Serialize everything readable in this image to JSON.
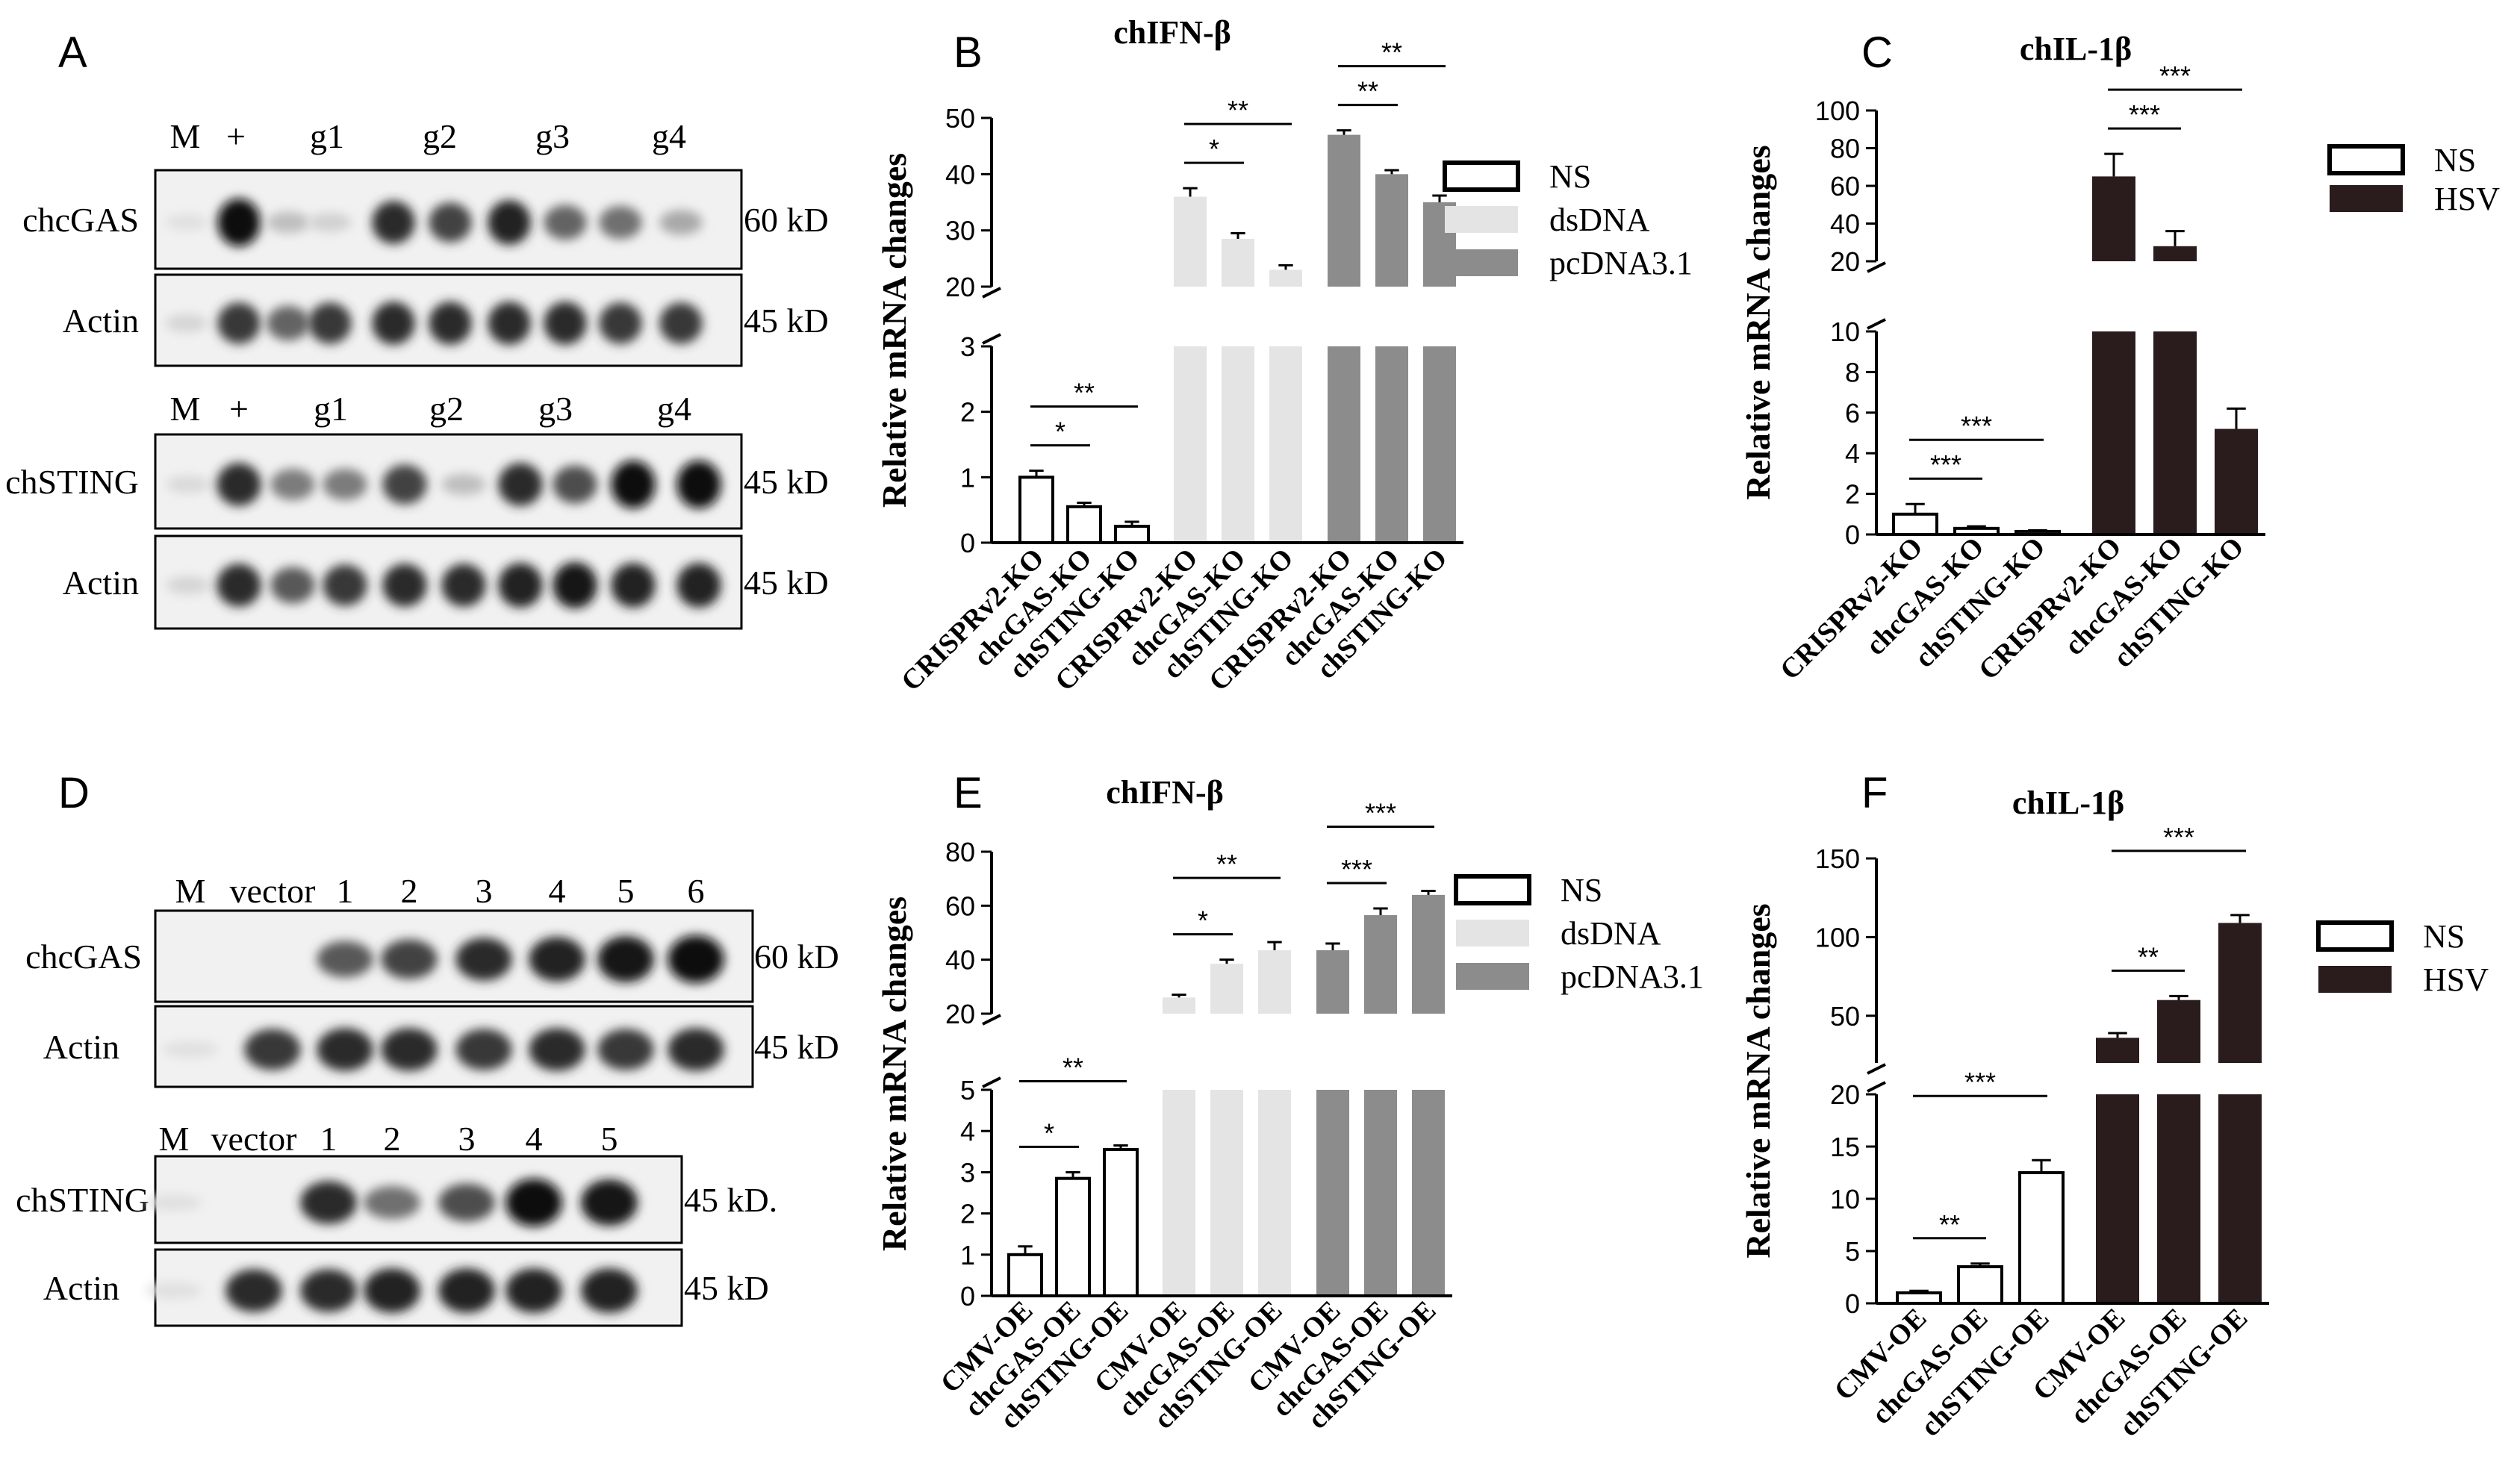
{
  "panel_letters": [
    "A",
    "B",
    "C",
    "D",
    "E",
    "F"
  ],
  "blots": [
    {
      "id": "A1",
      "lane_labels": [
        "M",
        "+",
        "g1",
        "g2",
        "g3",
        "g4"
      ],
      "rows": [
        {
          "name": "chcGAS",
          "size": "60 kD",
          "intensity": [
            0.05,
            1.0,
            0.2,
            0.12,
            0.85,
            0.75,
            0.9,
            0.6,
            0.55,
            0.3
          ]
        },
        {
          "name": "Actin",
          "size": "45 kD",
          "intensity": [
            0.1,
            0.8,
            0.6,
            0.8,
            0.85,
            0.85,
            0.85,
            0.85,
            0.8,
            0.8
          ]
        }
      ]
    },
    {
      "id": "A2",
      "lane_labels": [
        "M",
        "+",
        "g1",
        "g2",
        "g3",
        "g4"
      ],
      "rows": [
        {
          "name": "chSTING",
          "size": "45 kD",
          "intensity": [
            0.08,
            0.85,
            0.5,
            0.5,
            0.75,
            0.2,
            0.85,
            0.7,
            1.0,
            1.0
          ]
        },
        {
          "name": "Actin",
          "size": "45 kD",
          "intensity": [
            0.1,
            0.85,
            0.65,
            0.8,
            0.85,
            0.85,
            0.9,
            0.95,
            0.9,
            0.9
          ]
        }
      ]
    },
    {
      "id": "D1",
      "lane_labels": [
        "M",
        "vector",
        "1",
        "2",
        "3",
        "4",
        "5",
        "6"
      ],
      "rows": [
        {
          "name": "chcGAS",
          "size": "60 kD",
          "intensity": [
            0.0,
            0.0,
            0.65,
            0.75,
            0.85,
            0.9,
            0.95,
            1.0
          ]
        },
        {
          "name": "Actin",
          "size": "45 kD",
          "intensity": [
            0.05,
            0.8,
            0.85,
            0.85,
            0.8,
            0.85,
            0.8,
            0.85
          ]
        }
      ]
    },
    {
      "id": "D2",
      "lane_labels": [
        "M",
        "vector",
        "1",
        "2",
        "3",
        "4",
        "5"
      ],
      "rows": [
        {
          "name": "chSTING",
          "size": "45 kD.",
          "intensity": [
            0.05,
            0.0,
            0.85,
            0.55,
            0.7,
            1.0,
            0.95
          ]
        },
        {
          "name": "Actin",
          "size": "45 kD",
          "intensity": [
            0.05,
            0.85,
            0.85,
            0.9,
            0.9,
            0.9,
            0.9
          ]
        }
      ]
    }
  ],
  "legends": {
    "three": [
      "NS",
      "dsDNA",
      "pcDNA3.1"
    ],
    "two": [
      "NS",
      "HSV"
    ]
  },
  "colors": {
    "NS": "#ffffff",
    "dsDNA": "#e4e4e4",
    "pcDNA3.1": "#8c8c8c",
    "HSV": "#2a1c1c",
    "axis": "#000000"
  },
  "chart_data": [
    {
      "panel": "B",
      "type": "bar",
      "title": "chIFN-β",
      "ylabel": "Relative mRNA changes",
      "categories": [
        "CRISPRv2-KO",
        "chcGAS-KO",
        "chSTING-KO",
        "CRISPRv2-KO",
        "chcGAS-KO",
        "chSTING-KO",
        "CRISPRv2-KO",
        "chcGAS-KO",
        "chSTING-KO"
      ],
      "groups": [
        "NS",
        "NS",
        "NS",
        "dsDNA",
        "dsDNA",
        "dsDNA",
        "pcDNA3.1",
        "pcDNA3.1",
        "pcDNA3.1"
      ],
      "values": [
        1.0,
        0.55,
        0.25,
        36,
        28.5,
        23,
        47,
        40,
        35
      ],
      "errors": [
        0.1,
        0.06,
        0.07,
        1.5,
        1.0,
        0.8,
        0.8,
        0.7,
        1.2
      ],
      "y_break": {
        "lower": [
          0,
          3
        ],
        "upper": [
          20,
          50
        ]
      },
      "lower_ticks": [
        0,
        1,
        2,
        3
      ],
      "upper_ticks": [
        20,
        30,
        40,
        50
      ],
      "legend": [
        "NS",
        "dsDNA",
        "pcDNA3.1"
      ],
      "significance": [
        {
          "from": 0,
          "to": 1,
          "label": "*"
        },
        {
          "from": 0,
          "to": 2,
          "label": "**"
        },
        {
          "from": 3,
          "to": 4,
          "label": "*"
        },
        {
          "from": 3,
          "to": 5,
          "label": "**"
        },
        {
          "from": 6,
          "to": 7,
          "label": "**"
        },
        {
          "from": 6,
          "to": 8,
          "label": "**"
        }
      ]
    },
    {
      "panel": "C",
      "type": "bar",
      "title": "chIL-1β",
      "ylabel": "Relative mRNA changes",
      "categories": [
        "CRISPRv2-KO",
        "chcGAS-KO",
        "chSTING-KO",
        "CRISPRv2-KO",
        "chcGAS-KO",
        "chSTING-KO"
      ],
      "groups": [
        "NS",
        "NS",
        "NS",
        "HSV",
        "HSV",
        "HSV"
      ],
      "values": [
        1.0,
        0.3,
        0.15,
        65,
        28,
        5.2
      ],
      "errors": [
        0.5,
        0.1,
        0.05,
        12,
        8,
        1.0
      ],
      "y_break": {
        "lower": [
          0,
          10
        ],
        "upper": [
          20,
          100
        ]
      },
      "lower_ticks": [
        0,
        2,
        4,
        6,
        8,
        10
      ],
      "upper_ticks": [
        20,
        40,
        60,
        80,
        100
      ],
      "legend": [
        "NS",
        "HSV"
      ],
      "significance": [
        {
          "from": 0,
          "to": 1,
          "label": "***"
        },
        {
          "from": 0,
          "to": 2,
          "label": "***"
        },
        {
          "from": 3,
          "to": 4,
          "label": "***"
        },
        {
          "from": 3,
          "to": 5,
          "label": "***"
        }
      ]
    },
    {
      "panel": "E",
      "type": "bar",
      "title": "chIFN-β",
      "ylabel": "Relative mRNA changes",
      "categories": [
        "CMV-OE",
        "chcGAS-OE",
        "chSTING-OE",
        "CMV-OE",
        "chcGAS-OE",
        "chSTING-OE",
        "CMV-OE",
        "chcGAS-OE",
        "chSTING-OE"
      ],
      "groups": [
        "NS",
        "NS",
        "NS",
        "dsDNA",
        "dsDNA",
        "dsDNA",
        "pcDNA3.1",
        "pcDNA3.1",
        "pcDNA3.1"
      ],
      "values": [
        1.0,
        2.85,
        3.55,
        26,
        38.5,
        43.5,
        43.5,
        56.5,
        64
      ],
      "errors": [
        0.2,
        0.15,
        0.1,
        1.0,
        1.5,
        3.0,
        2.5,
        2.5,
        1.5
      ],
      "y_break": {
        "lower": [
          0,
          5
        ],
        "upper": [
          20,
          80
        ]
      },
      "lower_ticks": [
        0,
        1,
        2,
        3,
        4,
        5
      ],
      "upper_ticks": [
        20,
        40,
        60,
        80
      ],
      "legend": [
        "NS",
        "dsDNA",
        "pcDNA3.1"
      ],
      "significance": [
        {
          "from": 0,
          "to": 1,
          "label": "*"
        },
        {
          "from": 0,
          "to": 2,
          "label": "**"
        },
        {
          "from": 3,
          "to": 4,
          "label": "*"
        },
        {
          "from": 3,
          "to": 5,
          "label": "**"
        },
        {
          "from": 6,
          "to": 7,
          "label": "***"
        },
        {
          "from": 6,
          "to": 8,
          "label": "***"
        }
      ]
    },
    {
      "panel": "F",
      "type": "bar",
      "title": "chIL-1β",
      "ylabel": "Relative mRNA changes",
      "categories": [
        "CMV-OE",
        "chcGAS-OE",
        "chSTING-OE",
        "CMV-OE",
        "chcGAS-OE",
        "chSTING-OE"
      ],
      "groups": [
        "NS",
        "NS",
        "NS",
        "HSV",
        "HSV",
        "HSV"
      ],
      "values": [
        1.0,
        3.5,
        12.5,
        36,
        60,
        109
      ],
      "errors": [
        0.2,
        0.3,
        1.2,
        3,
        2.5,
        5
      ],
      "y_break": {
        "lower": [
          0,
          20
        ],
        "upper": [
          20,
          150
        ]
      },
      "lower_ticks": [
        0,
        5,
        10,
        15,
        20
      ],
      "upper_ticks": [
        50,
        100,
        150
      ],
      "legend": [
        "NS",
        "HSV"
      ],
      "significance": [
        {
          "from": 0,
          "to": 1,
          "label": "**"
        },
        {
          "from": 0,
          "to": 2,
          "label": "***"
        },
        {
          "from": 3,
          "to": 4,
          "label": "**"
        },
        {
          "from": 3,
          "to": 5,
          "label": "***"
        }
      ]
    }
  ]
}
